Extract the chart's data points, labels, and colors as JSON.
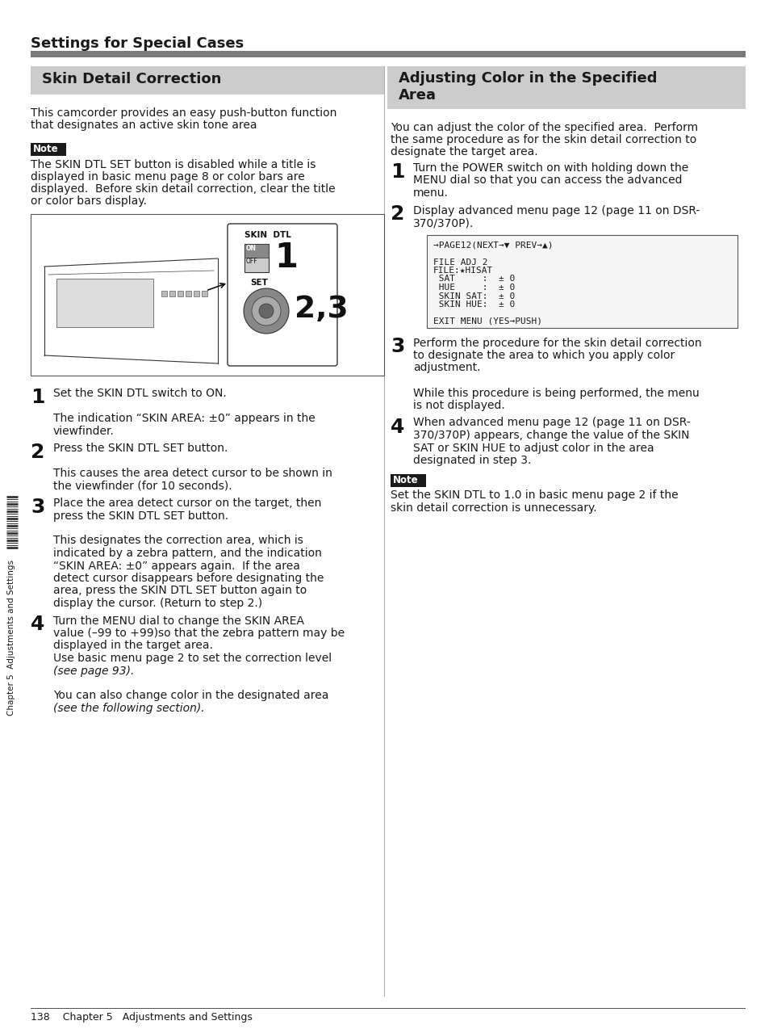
{
  "page_bg": "#ffffff",
  "header_text": "Settings for Special Cases",
  "header_line_color": "#808080",
  "header_text_color": "#1a1a1a",
  "left_section_title": "Skin Detail Correction",
  "right_section_title": "Adjusting Color in the Specified\nArea",
  "section_bg": "#cccccc",
  "note_bg": "#1a1a1a",
  "note_text_color": "#ffffff",
  "body_text_color": "#1a1a1a",
  "footer_text": "138    Chapter 5   Adjustments and Settings",
  "left_body_text1": "This camcorder provides an easy push-button function",
  "left_body_text2": "that designates an active skin tone area",
  "left_note_body": [
    "The SKIN DTL SET button is disabled while a title is",
    "displayed in basic menu page 8 or color bars are",
    "displayed.  Before skin detail correction, clear the title",
    "or color bars display."
  ],
  "step1_left_lines": [
    "Set the SKIN DTL switch to ON.",
    "",
    "The indication “SKIN AREA: ±0” appears in the",
    "viewfinder."
  ],
  "step2_left_lines": [
    "Press the SKIN DTL SET button.",
    "",
    "This causes the area detect cursor to be shown in",
    "the viewfinder (for 10 seconds)."
  ],
  "step3_left_lines": [
    "Place the area detect cursor on the target, then",
    "press the SKIN DTL SET button.",
    "",
    "This designates the correction area, which is",
    "indicated by a zebra pattern, and the indication",
    "“SKIN AREA: ±0” appears again.  If the area",
    "detect cursor disappears before designating the",
    "area, press the SKIN DTL SET button again to",
    "display the cursor. (Return to step 2.)"
  ],
  "step4_left_lines": [
    "Turn the MENU dial to change the SKIN AREA",
    "value (–99 to +99)so that the zebra pattern may be",
    "displayed in the target area.",
    "Use basic menu page 2 to set the correction level",
    "(see page 93).",
    "",
    "You can also change color in the designated area",
    "(see the following section)."
  ],
  "step4_italic_indices": [
    4,
    7
  ],
  "right_body_lines": [
    "You can adjust the color of the specified area.  Perform",
    "the same procedure as for the skin detail correction to",
    "designate the target area."
  ],
  "step1_right_lines": [
    "Turn the POWER switch on with holding down the",
    "MENU dial so that you can access the advanced",
    "menu."
  ],
  "step2_right_lines": [
    "Display advanced menu page 12 (page 11 on DSR-",
    "370/370P)."
  ],
  "menu_lines": [
    "→PAGE12(NEXT→▼ PREV→▲)",
    "",
    "FILE ADJ 2",
    "FILE:★HISAT",
    " SAT     :  ± 0",
    " HUE     :  ± 0",
    " SKIN SAT:  ± 0",
    " SKIN HUE:  ± 0",
    "",
    "EXIT MENU (YES→PUSH)"
  ],
  "step3_right_lines": [
    "Perform the procedure for the skin detail correction",
    "to designate the area to which you apply color",
    "adjustment.",
    "",
    "While this procedure is being performed, the menu",
    "is not displayed."
  ],
  "step4_right_lines": [
    "When advanced menu page 12 (page 11 on DSR-",
    "370/370P) appears, change the value of the SKIN",
    "SAT or SKIN HUE to adjust color in the area",
    "designated in step 3."
  ],
  "right_note_lines": [
    "Set the SKIN DTL to 1.0 in basic menu page 2 if the",
    "skin detail correction is unnecessary."
  ],
  "sidebar_text": "Chapter 5  Adjustments and Settings"
}
